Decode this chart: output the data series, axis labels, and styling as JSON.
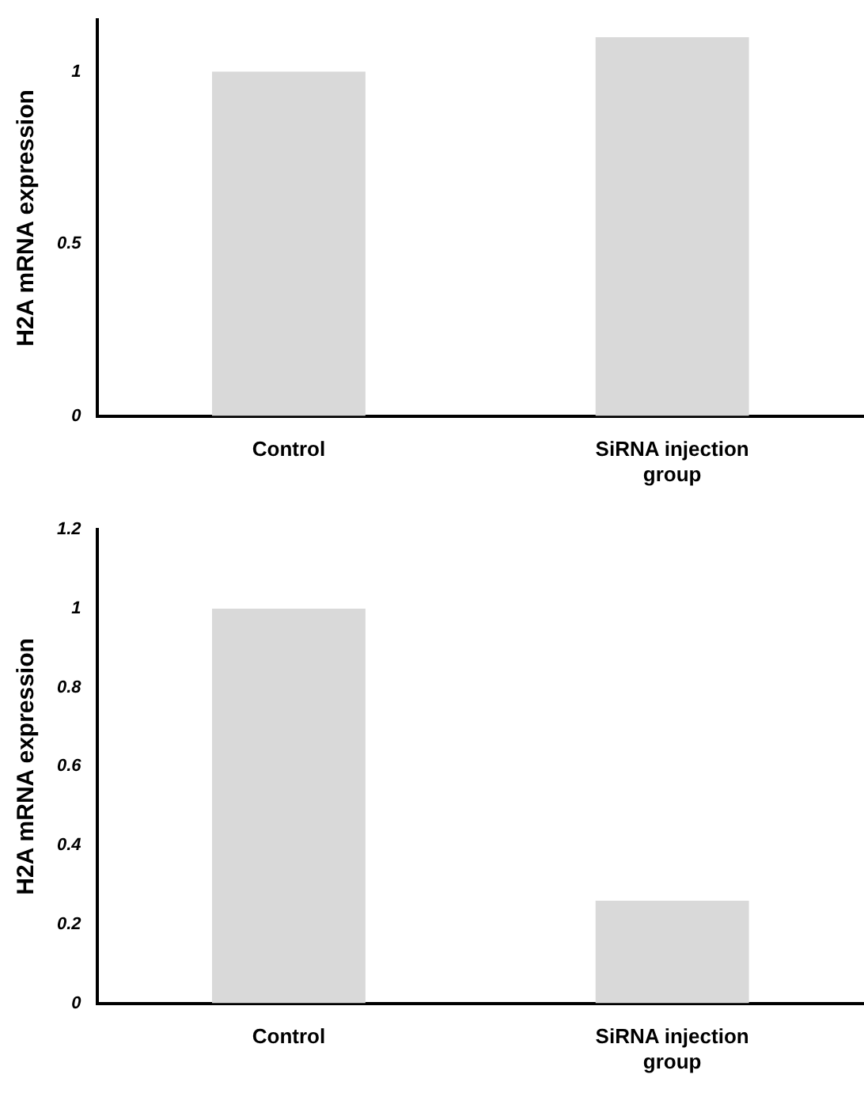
{
  "chart_data": [
    {
      "type": "bar",
      "ylabel": "H2A mRNA expression",
      "categories": [
        "Control",
        "SiRNA injection group"
      ],
      "values": [
        1.0,
        1.1
      ],
      "color": "#d9d9d9",
      "ylim": [
        0,
        1.15
      ],
      "yticks": [
        0,
        0.5,
        1
      ],
      "grid": false,
      "legend": false
    },
    {
      "type": "bar",
      "ylabel": "H2A mRNA expression",
      "categories": [
        "Control",
        "SiRNA injection group"
      ],
      "values": [
        1.0,
        0.26
      ],
      "color": "#d9d9d9",
      "ylim": [
        0,
        1.2
      ],
      "yticks": [
        0,
        0.2,
        0.4,
        0.6,
        0.8,
        1,
        1.2
      ],
      "grid": false,
      "legend": false
    }
  ]
}
